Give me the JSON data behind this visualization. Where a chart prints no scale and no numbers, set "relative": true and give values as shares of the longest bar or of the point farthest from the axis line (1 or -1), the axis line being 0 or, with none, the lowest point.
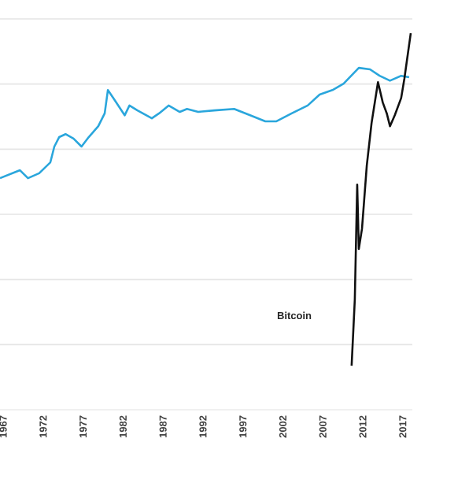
{
  "chart_data": {
    "type": "line",
    "relative": true,
    "grid": "y",
    "x": [
      1966.6,
      1968.6,
      1969.1,
      1970.1,
      1971.5,
      1972.9,
      1973.4,
      1974.0,
      1974.8,
      1975.8,
      1976.8,
      1977.7,
      1978.9,
      1979.7,
      1980.1,
      1980.9,
      1982.2,
      1982.8,
      1983.8,
      1985.6,
      1986.5,
      1987.7,
      1989.1,
      1990.0,
      1991.4,
      1993.4,
      1995.9,
      1997.9,
      1999.8,
      2001.2,
      2003.1,
      2005.1,
      2006.6,
      2008.2,
      2009.6,
      2011.5,
      2012.9,
      2014.1,
      2015.4,
      2016.8,
      2017.8
    ],
    "xlim": [
      1966.6,
      2018.2
    ],
    "xticks": [
      1967,
      1972,
      1977,
      1982,
      1987,
      1992,
      1997,
      2002,
      2007,
      2012,
      2017
    ],
    "series": [
      {
        "color": "#2aa6dc",
        "values": [
          0.615,
          0.632,
          0.636,
          0.615,
          0.628,
          0.657,
          0.699,
          0.724,
          0.732,
          0.72,
          0.699,
          0.724,
          0.753,
          0.787,
          0.849,
          0.824,
          0.782,
          0.808,
          0.795,
          0.774,
          0.787,
          0.808,
          0.791,
          0.799,
          0.791,
          0.795,
          0.799,
          0.782,
          0.766,
          0.766,
          0.787,
          0.808,
          0.837,
          0.849,
          0.866,
          0.908,
          0.904,
          0.887,
          0.874,
          0.887,
          0.883
        ]
      },
      {
        "name": "Bitcoin",
        "color": "#111111",
        "x": [
          2010.6,
          2011.0,
          2011.3,
          2011.5,
          2011.9,
          2012.5,
          2013.1,
          2013.9,
          2014.5,
          2015.0,
          2015.4,
          2016.0,
          2016.8,
          2017.2,
          2018.0
        ],
        "values": [
          0.117,
          0.293,
          0.598,
          0.427,
          0.481,
          0.649,
          0.762,
          0.87,
          0.816,
          0.787,
          0.753,
          0.782,
          0.828,
          0.879,
          1.0
        ]
      }
    ],
    "marker": "none",
    "line_style": "solid"
  }
}
